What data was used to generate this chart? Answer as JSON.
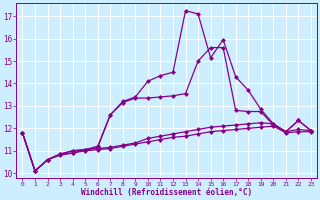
{
  "xlabel": "Windchill (Refroidissement éolien,°C)",
  "bg_color": "#cceeff",
  "line_color": "#880088",
  "grid_color": "#aaddcc",
  "xlim": [
    -0.5,
    23.5
  ],
  "ylim": [
    9.8,
    17.6
  ],
  "yticks": [
    10,
    11,
    12,
    13,
    14,
    15,
    16,
    17
  ],
  "xticks": [
    0,
    1,
    2,
    3,
    4,
    5,
    6,
    7,
    8,
    9,
    10,
    11,
    12,
    13,
    14,
    15,
    16,
    17,
    18,
    19,
    20,
    21,
    22,
    23
  ],
  "line1_x": [
    0,
    1,
    2,
    3,
    4,
    5,
    6,
    7,
    8,
    9,
    10,
    11,
    12,
    13,
    14,
    15,
    16,
    17,
    18,
    19,
    20,
    21,
    22,
    23
  ],
  "line1_y": [
    11.8,
    10.1,
    10.6,
    10.8,
    10.9,
    11.0,
    11.05,
    11.1,
    11.2,
    11.3,
    11.4,
    11.5,
    11.6,
    11.65,
    11.75,
    11.85,
    11.9,
    11.95,
    12.0,
    12.05,
    12.1,
    11.8,
    11.85,
    11.85
  ],
  "line2_x": [
    0,
    1,
    2,
    3,
    4,
    5,
    6,
    7,
    8,
    9,
    10,
    11,
    12,
    13,
    14,
    15,
    16,
    17,
    18,
    19,
    20,
    21,
    22,
    23
  ],
  "line2_y": [
    11.8,
    10.1,
    10.6,
    10.85,
    10.9,
    11.05,
    11.1,
    11.15,
    11.25,
    11.35,
    11.55,
    11.65,
    11.75,
    11.85,
    11.95,
    12.05,
    12.1,
    12.15,
    12.2,
    12.25,
    12.2,
    11.85,
    11.95,
    11.9
  ],
  "line3_x": [
    0,
    1,
    2,
    3,
    4,
    5,
    6,
    7,
    8,
    9,
    10,
    11,
    12,
    13,
    14,
    15,
    16,
    17,
    18,
    19,
    20,
    21,
    22,
    23
  ],
  "line3_y": [
    11.8,
    10.1,
    10.6,
    10.85,
    11.0,
    11.05,
    11.15,
    12.6,
    13.15,
    13.35,
    13.35,
    13.4,
    13.45,
    13.55,
    15.0,
    15.6,
    15.6,
    12.8,
    12.75,
    12.75,
    12.15,
    11.85,
    12.35,
    11.9
  ],
  "line4_x": [
    0,
    1,
    2,
    3,
    4,
    5,
    6,
    7,
    8,
    9,
    10,
    11,
    12,
    13,
    14,
    15,
    16,
    17,
    18,
    19,
    20,
    21,
    22,
    23
  ],
  "line4_y": [
    11.8,
    10.1,
    10.6,
    10.85,
    11.0,
    11.05,
    11.2,
    12.6,
    13.2,
    13.4,
    14.1,
    14.35,
    14.5,
    17.25,
    17.1,
    15.15,
    15.95,
    14.3,
    13.7,
    12.85,
    12.2,
    11.85,
    12.35,
    11.9
  ]
}
